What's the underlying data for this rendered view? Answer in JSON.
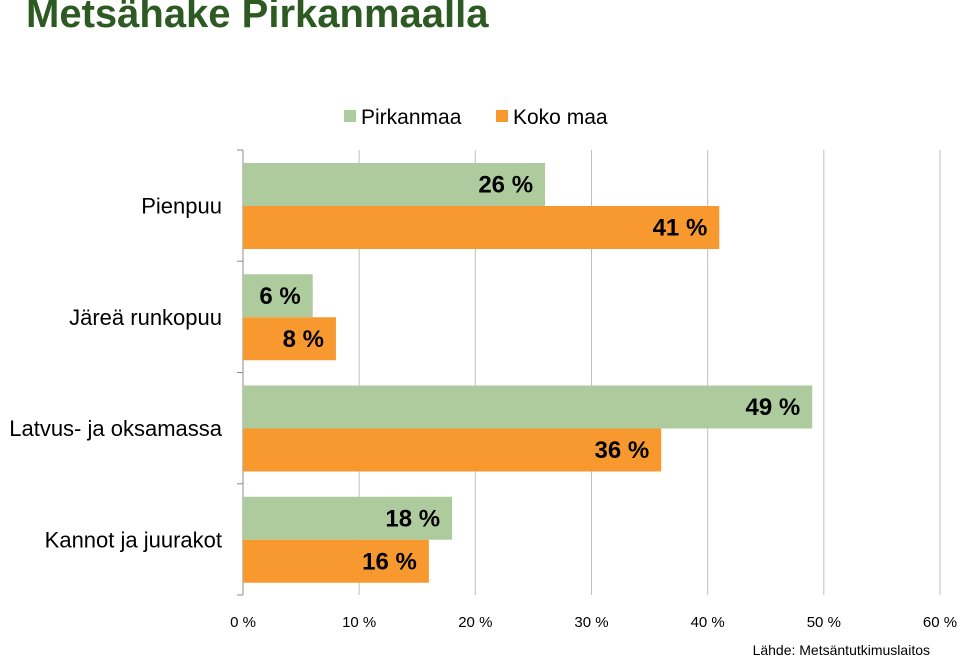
{
  "page": {
    "title": "Metsähake Pirkanmaalla",
    "source": "Lähde: Metsäntutkimuslaitos"
  },
  "colors": {
    "title": "#2d5a22",
    "grid": "#bfbfbf"
  },
  "chart_data": {
    "type": "bar",
    "orientation": "horizontal",
    "categories": [
      "Pienpuu",
      "Järeä runkopuu",
      "Latvus- ja oksamassa",
      "Kannot ja juurakot"
    ],
    "series": [
      {
        "name": "Pirkanmaa",
        "color": "#aecb9d",
        "values": [
          26,
          6,
          49,
          18
        ],
        "labels": [
          "26 %",
          "6 %",
          "49 %",
          "18 %"
        ]
      },
      {
        "name": "Koko maa",
        "color": "#f7992f",
        "values": [
          41,
          8,
          36,
          16
        ],
        "labels": [
          "41 %",
          "8 %",
          "36 %",
          "16 %"
        ]
      }
    ],
    "xlim": [
      0,
      60
    ],
    "xticks": [
      "0 %",
      "10 %",
      "20 %",
      "30 %",
      "40 %",
      "50 %",
      "60 %"
    ],
    "grid": true,
    "legend": "top"
  }
}
